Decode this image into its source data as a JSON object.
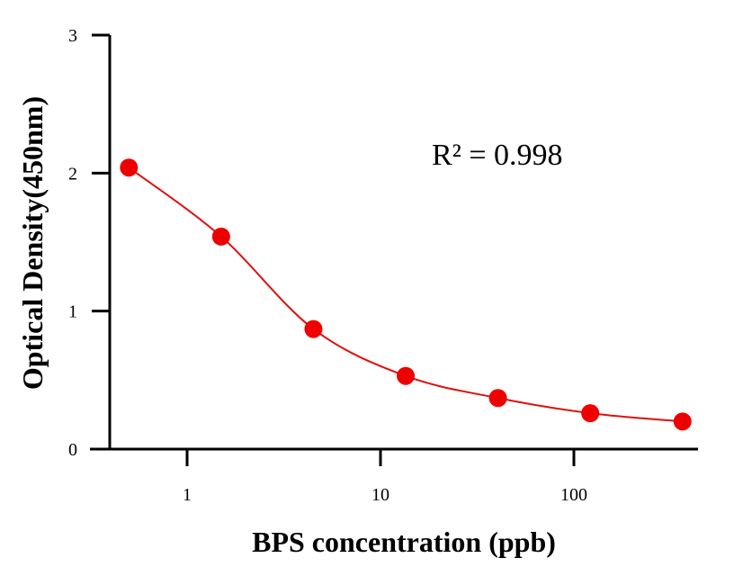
{
  "chart_data": {
    "type": "scatter",
    "xlabel": "BPS concentration (ppb)",
    "ylabel": "Optical Density(450nm)",
    "x_scale": "log",
    "xlim": [
      0.315,
      438
    ],
    "ylim": [
      0,
      3
    ],
    "x_ticks": [
      1,
      10,
      100
    ],
    "x_tick_labels": [
      "1",
      "10",
      "100"
    ],
    "y_ticks": [
      0,
      1,
      2,
      3
    ],
    "y_tick_labels": [
      "0",
      "1",
      "2",
      "3"
    ],
    "grid": false,
    "annotation": "R² = 0.998",
    "series": [
      {
        "x": [
          0.5,
          1.5,
          4.5,
          13.5,
          40.5,
          121.5,
          364.5
        ],
        "y": [
          2.04,
          1.54,
          0.87,
          0.53,
          0.37,
          0.26,
          0.2
        ],
        "marker_color": "#ee0000",
        "fit_line_color": "#dd1111",
        "fit": "smooth curve"
      }
    ]
  }
}
